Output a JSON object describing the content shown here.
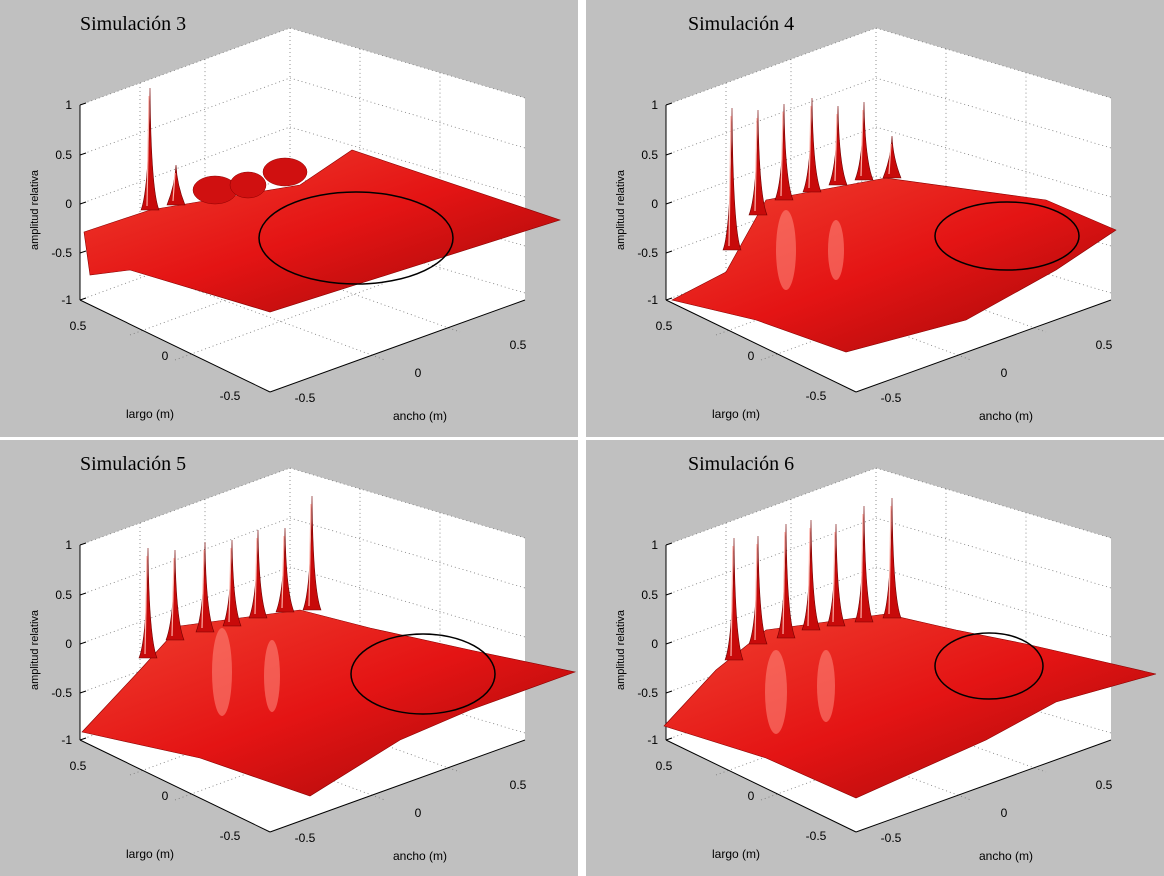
{
  "background": "#c0c0c0",
  "surface_color": "#e41414",
  "chart_data": [
    {
      "type": "surface3d",
      "title": "Simulación 3",
      "xlabel": "largo (m)",
      "ylabel": "ancho (m)",
      "zlabel": "amplitud relativa",
      "zticks": [
        "1",
        "0.5",
        "0",
        "-0.5",
        "-1"
      ],
      "xticks": [
        "0.5",
        "0",
        "-0.5"
      ],
      "yticks": [
        "-0.5",
        "0",
        "0.5"
      ],
      "zlim": [
        -1,
        1
      ],
      "xlim": [
        -0.75,
        0.75
      ],
      "ylim": [
        -0.75,
        0.75
      ],
      "grid": true,
      "annotation": "ellipse"
    },
    {
      "type": "surface3d",
      "title": "Simulación 4",
      "xlabel": "largo (m)",
      "ylabel": "ancho (m)",
      "zlabel": "amplitud relativa",
      "zticks": [
        "1",
        "0.5",
        "0",
        "-0.5",
        "-1"
      ],
      "xticks": [
        "0.5",
        "0",
        "-0.5"
      ],
      "yticks": [
        "-0.5",
        "0",
        "0.5"
      ],
      "zlim": [
        -1,
        1
      ],
      "xlim": [
        -0.75,
        0.75
      ],
      "ylim": [
        -0.75,
        0.75
      ],
      "grid": true,
      "annotation": "ellipse"
    },
    {
      "type": "surface3d",
      "title": "Simulación 5",
      "xlabel": "largo (m)",
      "ylabel": "ancho (m)",
      "zlabel": "amplitud relativa",
      "zticks": [
        "1",
        "0.5",
        "0",
        "-0.5",
        "-1"
      ],
      "xticks": [
        "0.5",
        "0",
        "-0.5"
      ],
      "yticks": [
        "-0.5",
        "0",
        "0.5"
      ],
      "zlim": [
        -1,
        1
      ],
      "xlim": [
        -0.75,
        0.75
      ],
      "ylim": [
        -0.75,
        0.75
      ],
      "grid": true,
      "annotation": "ellipse"
    },
    {
      "type": "surface3d",
      "title": "Simulación 6",
      "xlabel": "largo (m)",
      "ylabel": "ancho (m)",
      "zlabel": "amplitud relativa",
      "zticks": [
        "1",
        "0.5",
        "0",
        "-0.5",
        "-1"
      ],
      "xticks": [
        "0.5",
        "0",
        "-0.5"
      ],
      "yticks": [
        "-0.5",
        "0",
        "0.5"
      ],
      "zlim": [
        -1,
        1
      ],
      "xlim": [
        -0.75,
        0.75
      ],
      "ylim": [
        -0.75,
        0.75
      ],
      "grid": true,
      "annotation": "ellipse"
    }
  ]
}
